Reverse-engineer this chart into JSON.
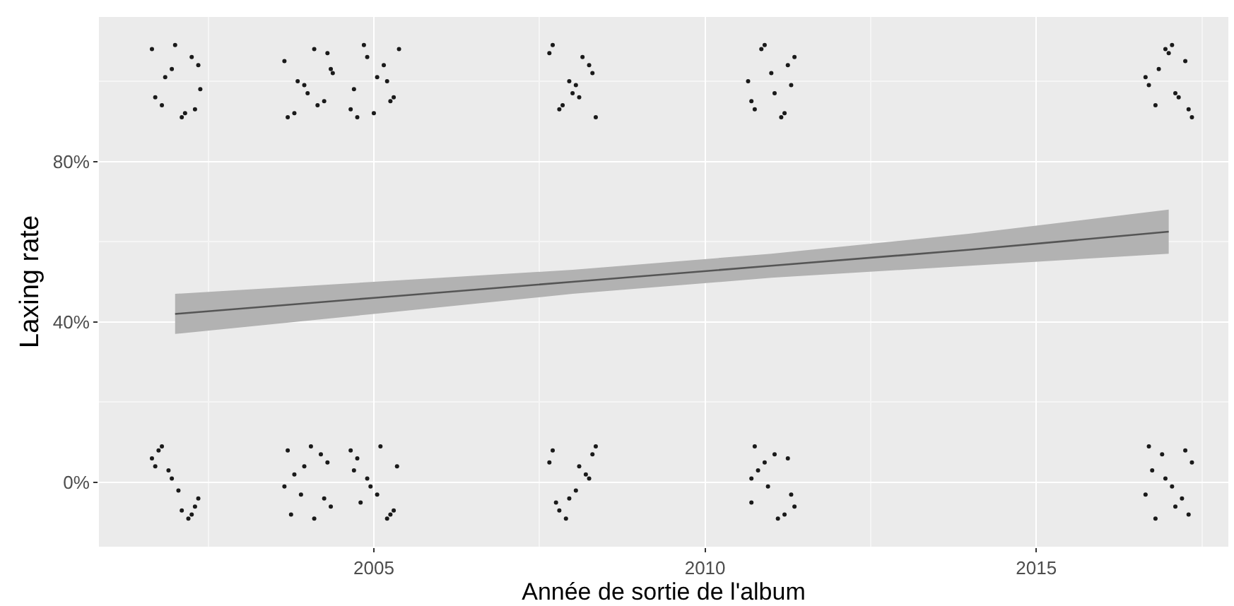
{
  "chart_data": {
    "type": "scatter",
    "xlabel": "Année de sortie de l'album",
    "ylabel": "Laxing rate",
    "xlim": [
      2000.85,
      2017.9
    ],
    "xticks": [
      2005,
      2010,
      2015
    ],
    "ylim": [
      -16,
      116
    ],
    "yticks": [
      {
        "value": 0,
        "label": "0%"
      },
      {
        "value": 40,
        "label": "40%"
      },
      {
        "value": 80,
        "label": "80%"
      }
    ],
    "grid": true,
    "marker": "circle",
    "series": [
      {
        "type": "line",
        "color": "#555555",
        "marker": "none",
        "x": [
          2002,
          2005,
          2008,
          2011,
          2014,
          2017
        ],
        "values": [
          42,
          46,
          50,
          54,
          58,
          62.5
        ],
        "lower": [
          37,
          42,
          47,
          51,
          54,
          57
        ],
        "upper": [
          47,
          50,
          53,
          57,
          62,
          68
        ]
      },
      {
        "color": "#1a1a1a",
        "x": [
          2001.65,
          2001.8,
          2001.95,
          2002.1,
          2002.25,
          2002.38,
          2001.7,
          2002.0,
          2002.3,
          2001.85,
          2002.15,
          2002.35
        ],
        "values": [
          108,
          94,
          103,
          91,
          106,
          98,
          96,
          109,
          93,
          101,
          92,
          104
        ]
      },
      {
        "color": "#1a1a1a",
        "x": [
          2001.75,
          2002.3,
          2001.9,
          2002.2,
          2001.65,
          2002.05,
          2002.35,
          2001.8,
          2002.1,
          2001.95,
          2002.25,
          2001.7
        ],
        "values": [
          8,
          -6,
          3,
          -9,
          6,
          -2,
          -4,
          9,
          -7,
          1,
          -8,
          4
        ]
      },
      {
        "color": "#1a1a1a",
        "x": [
          2003.65,
          2003.8,
          2003.95,
          2004.1,
          2004.25,
          2004.38,
          2003.7,
          2004.0,
          2004.3,
          2003.85,
          2004.15,
          2004.35
        ],
        "values": [
          105,
          92,
          99,
          108,
          95,
          102,
          91,
          97,
          107,
          100,
          94,
          103
        ]
      },
      {
        "color": "#1a1a1a",
        "x": [
          2003.75,
          2004.3,
          2003.9,
          2004.2,
          2003.65,
          2004.05,
          2004.35,
          2003.8,
          2004.1,
          2003.95,
          2004.25,
          2003.7
        ],
        "values": [
          -8,
          5,
          -3,
          7,
          -1,
          9,
          -6,
          2,
          -9,
          4,
          -4,
          8
        ]
      },
      {
        "color": "#1a1a1a",
        "x": [
          2004.7,
          2004.85,
          2005.0,
          2005.15,
          2005.3,
          2005.38,
          2004.75,
          2005.05,
          2005.25,
          2004.9,
          2005.2,
          2004.65
        ],
        "values": [
          98,
          109,
          92,
          104,
          96,
          108,
          91,
          101,
          95,
          106,
          100,
          93
        ]
      },
      {
        "color": "#1a1a1a",
        "x": [
          2004.75,
          2005.3,
          2004.9,
          2005.2,
          2004.65,
          2005.05,
          2005.35,
          2004.8,
          2005.1,
          2004.95,
          2005.25,
          2004.7
        ],
        "values": [
          6,
          -7,
          1,
          -9,
          8,
          -3,
          4,
          -5,
          9,
          -1,
          -8,
          3
        ]
      },
      {
        "color": "#1a1a1a",
        "x": [
          2007.65,
          2007.8,
          2007.95,
          2008.1,
          2008.25,
          2008.35,
          2007.7,
          2008.0,
          2008.3,
          2007.85,
          2008.15,
          2008.05
        ],
        "values": [
          107,
          93,
          100,
          96,
          104,
          91,
          109,
          97,
          102,
          94,
          106,
          99
        ]
      },
      {
        "color": "#1a1a1a",
        "x": [
          2007.75,
          2008.3,
          2007.9,
          2008.2,
          2007.65,
          2008.05,
          2008.35,
          2007.8,
          2008.1,
          2007.95,
          2008.25,
          2007.7
        ],
        "values": [
          -5,
          7,
          -9,
          2,
          5,
          -2,
          9,
          -7,
          4,
          -4,
          1,
          8
        ]
      },
      {
        "color": "#1a1a1a",
        "x": [
          2010.7,
          2010.85,
          2011.0,
          2011.15,
          2011.3,
          2011.35,
          2010.75,
          2011.05,
          2011.25,
          2010.9,
          2011.2,
          2010.65
        ],
        "values": [
          95,
          108,
          102,
          91,
          99,
          106,
          93,
          97,
          104,
          109,
          92,
          100
        ]
      },
      {
        "color": "#1a1a1a",
        "x": [
          2010.75,
          2011.3,
          2010.9,
          2011.2,
          2010.7,
          2011.05,
          2011.35,
          2010.8,
          2011.1,
          2010.95,
          2011.25,
          2010.7
        ],
        "values": [
          9,
          -3,
          5,
          -8,
          1,
          7,
          -6,
          3,
          -9,
          -1,
          6,
          -5
        ]
      },
      {
        "color": "#1a1a1a",
        "x": [
          2016.65,
          2016.8,
          2016.95,
          2017.1,
          2017.25,
          2017.35,
          2016.7,
          2017.0,
          2017.3,
          2016.85,
          2017.15,
          2017.05
        ],
        "values": [
          101,
          94,
          108,
          97,
          105,
          91,
          99,
          107,
          93,
          103,
          96,
          109
        ]
      },
      {
        "color": "#1a1a1a",
        "x": [
          2016.75,
          2017.3,
          2016.9,
          2017.2,
          2016.7,
          2017.05,
          2017.35,
          2016.8,
          2017.1,
          2016.95,
          2017.25,
          2016.65
        ],
        "values": [
          3,
          -8,
          7,
          -4,
          9,
          -1,
          5,
          -9,
          -6,
          1,
          8,
          -3
        ]
      }
    ]
  }
}
